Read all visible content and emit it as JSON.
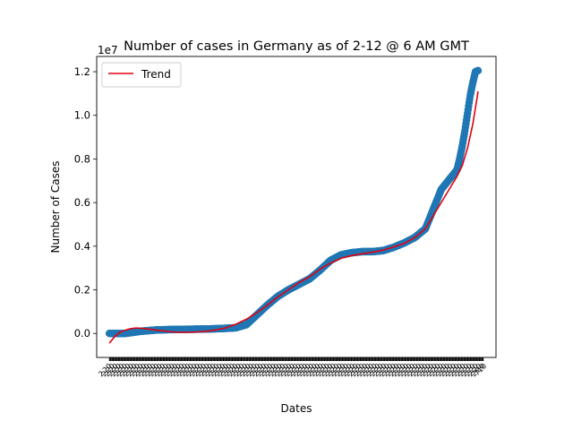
{
  "chart_data": {
    "type": "scatter",
    "title": "Number of cases in Germany as of 2-12 @ 6 AM GMT",
    "xlabel": "Dates",
    "ylabel": "Number of Cases",
    "offset_label": "1e7",
    "y_scale_factor": 10000000,
    "ylim": [
      -0.11,
      1.27
    ],
    "xlim": [
      -24,
      734
    ],
    "y_ticks": [
      0.0,
      0.2,
      0.4,
      0.6,
      0.8,
      1.0,
      1.2
    ],
    "y_tick_labels": [
      "0.0",
      "0.2",
      "0.4",
      "0.6",
      "0.8",
      "1.0",
      "1.2"
    ],
    "x_tick_labels_note": "dense overlapping date labels",
    "x_tick_last_label": "710",
    "x_tick_count": 710,
    "grid": false,
    "legend": {
      "position": "top-left",
      "entries": [
        "Trend"
      ]
    },
    "series": [
      {
        "kind": "scatter",
        "color": "#1f77b4",
        "points": [
          [
            0,
            0.0
          ],
          [
            30,
            0.0
          ],
          [
            60,
            0.01
          ],
          [
            90,
            0.016
          ],
          [
            120,
            0.018
          ],
          [
            150,
            0.019
          ],
          [
            180,
            0.02
          ],
          [
            210,
            0.022
          ],
          [
            240,
            0.026
          ],
          [
            260,
            0.04
          ],
          [
            280,
            0.085
          ],
          [
            300,
            0.13
          ],
          [
            320,
            0.17
          ],
          [
            340,
            0.2
          ],
          [
            360,
            0.225
          ],
          [
            380,
            0.25
          ],
          [
            400,
            0.29
          ],
          [
            420,
            0.335
          ],
          [
            440,
            0.36
          ],
          [
            460,
            0.37
          ],
          [
            480,
            0.375
          ],
          [
            500,
            0.375
          ],
          [
            520,
            0.38
          ],
          [
            540,
            0.395
          ],
          [
            560,
            0.415
          ],
          [
            580,
            0.44
          ],
          [
            600,
            0.48
          ],
          [
            610,
            0.54
          ],
          [
            620,
            0.6
          ],
          [
            630,
            0.66
          ],
          [
            640,
            0.69
          ],
          [
            650,
            0.72
          ],
          [
            660,
            0.75
          ],
          [
            665,
            0.8
          ],
          [
            670,
            0.86
          ],
          [
            675,
            0.93
          ],
          [
            680,
            1.01
          ],
          [
            685,
            1.09
          ],
          [
            690,
            1.15
          ],
          [
            695,
            1.2
          ],
          [
            700,
            1.205
          ]
        ]
      },
      {
        "kind": "line",
        "name": "Trend",
        "color": "#e4000f",
        "points": [
          [
            0,
            -0.045
          ],
          [
            10,
            -0.015
          ],
          [
            20,
            0.005
          ],
          [
            30,
            0.015
          ],
          [
            40,
            0.022
          ],
          [
            50,
            0.025
          ],
          [
            60,
            0.024
          ],
          [
            80,
            0.018
          ],
          [
            100,
            0.012
          ],
          [
            120,
            0.007
          ],
          [
            140,
            0.005
          ],
          [
            160,
            0.006
          ],
          [
            180,
            0.009
          ],
          [
            200,
            0.015
          ],
          [
            220,
            0.025
          ],
          [
            240,
            0.042
          ],
          [
            260,
            0.065
          ],
          [
            280,
            0.095
          ],
          [
            300,
            0.13
          ],
          [
            320,
            0.168
          ],
          [
            340,
            0.2
          ],
          [
            360,
            0.233
          ],
          [
            380,
            0.26
          ],
          [
            400,
            0.295
          ],
          [
            420,
            0.323
          ],
          [
            440,
            0.345
          ],
          [
            460,
            0.357
          ],
          [
            480,
            0.365
          ],
          [
            500,
            0.373
          ],
          [
            520,
            0.382
          ],
          [
            540,
            0.397
          ],
          [
            560,
            0.413
          ],
          [
            580,
            0.44
          ],
          [
            600,
            0.48
          ],
          [
            620,
            0.56
          ],
          [
            640,
            0.64
          ],
          [
            660,
            0.72
          ],
          [
            670,
            0.77
          ],
          [
            680,
            0.85
          ],
          [
            690,
            0.96
          ],
          [
            700,
            1.11
          ]
        ]
      }
    ]
  }
}
